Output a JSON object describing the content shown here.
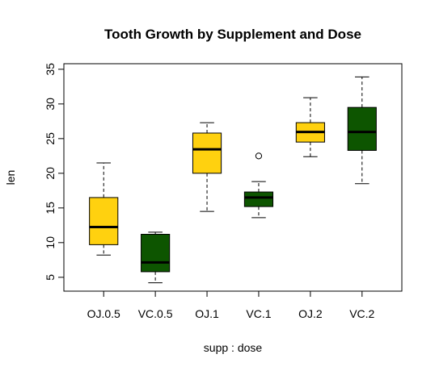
{
  "chart_data": {
    "type": "boxplot",
    "title": "Tooth Growth by Supplement and Dose",
    "xlabel": "supp : dose",
    "ylabel": "len",
    "ylim": [
      3.0,
      35.8
    ],
    "yticks": [
      5,
      10,
      15,
      20,
      25,
      30,
      35
    ],
    "grid": false,
    "legend": "none",
    "colors": {
      "OJ": "#FFD10F",
      "VC": "#0D5500",
      "median": "#000000",
      "outline": "#000000"
    },
    "categories": [
      "OJ.0.5",
      "VC.0.5",
      "OJ.1",
      "VC.1",
      "OJ.2",
      "VC.2"
    ],
    "boxes": [
      {
        "label": "OJ.0.5",
        "supp": "OJ",
        "min": 8.2,
        "q1": 9.7,
        "median": 12.25,
        "q3": 16.5,
        "max": 21.5,
        "outliers": []
      },
      {
        "label": "VC.0.5",
        "supp": "VC",
        "min": 4.2,
        "q1": 5.8,
        "median": 7.15,
        "q3": 11.2,
        "max": 11.5,
        "outliers": []
      },
      {
        "label": "OJ.1",
        "supp": "OJ",
        "min": 14.5,
        "q1": 20.0,
        "median": 23.45,
        "q3": 25.8,
        "max": 27.3,
        "outliers": []
      },
      {
        "label": "VC.1",
        "supp": "VC",
        "min": 13.6,
        "q1": 15.2,
        "median": 16.5,
        "q3": 17.3,
        "max": 18.8,
        "outliers": [
          22.5
        ]
      },
      {
        "label": "OJ.2",
        "supp": "OJ",
        "min": 22.4,
        "q1": 24.5,
        "median": 25.95,
        "q3": 27.3,
        "max": 30.9,
        "outliers": []
      },
      {
        "label": "VC.2",
        "supp": "VC",
        "min": 18.5,
        "q1": 23.3,
        "median": 25.95,
        "q3": 29.5,
        "max": 33.9,
        "outliers": []
      }
    ]
  }
}
